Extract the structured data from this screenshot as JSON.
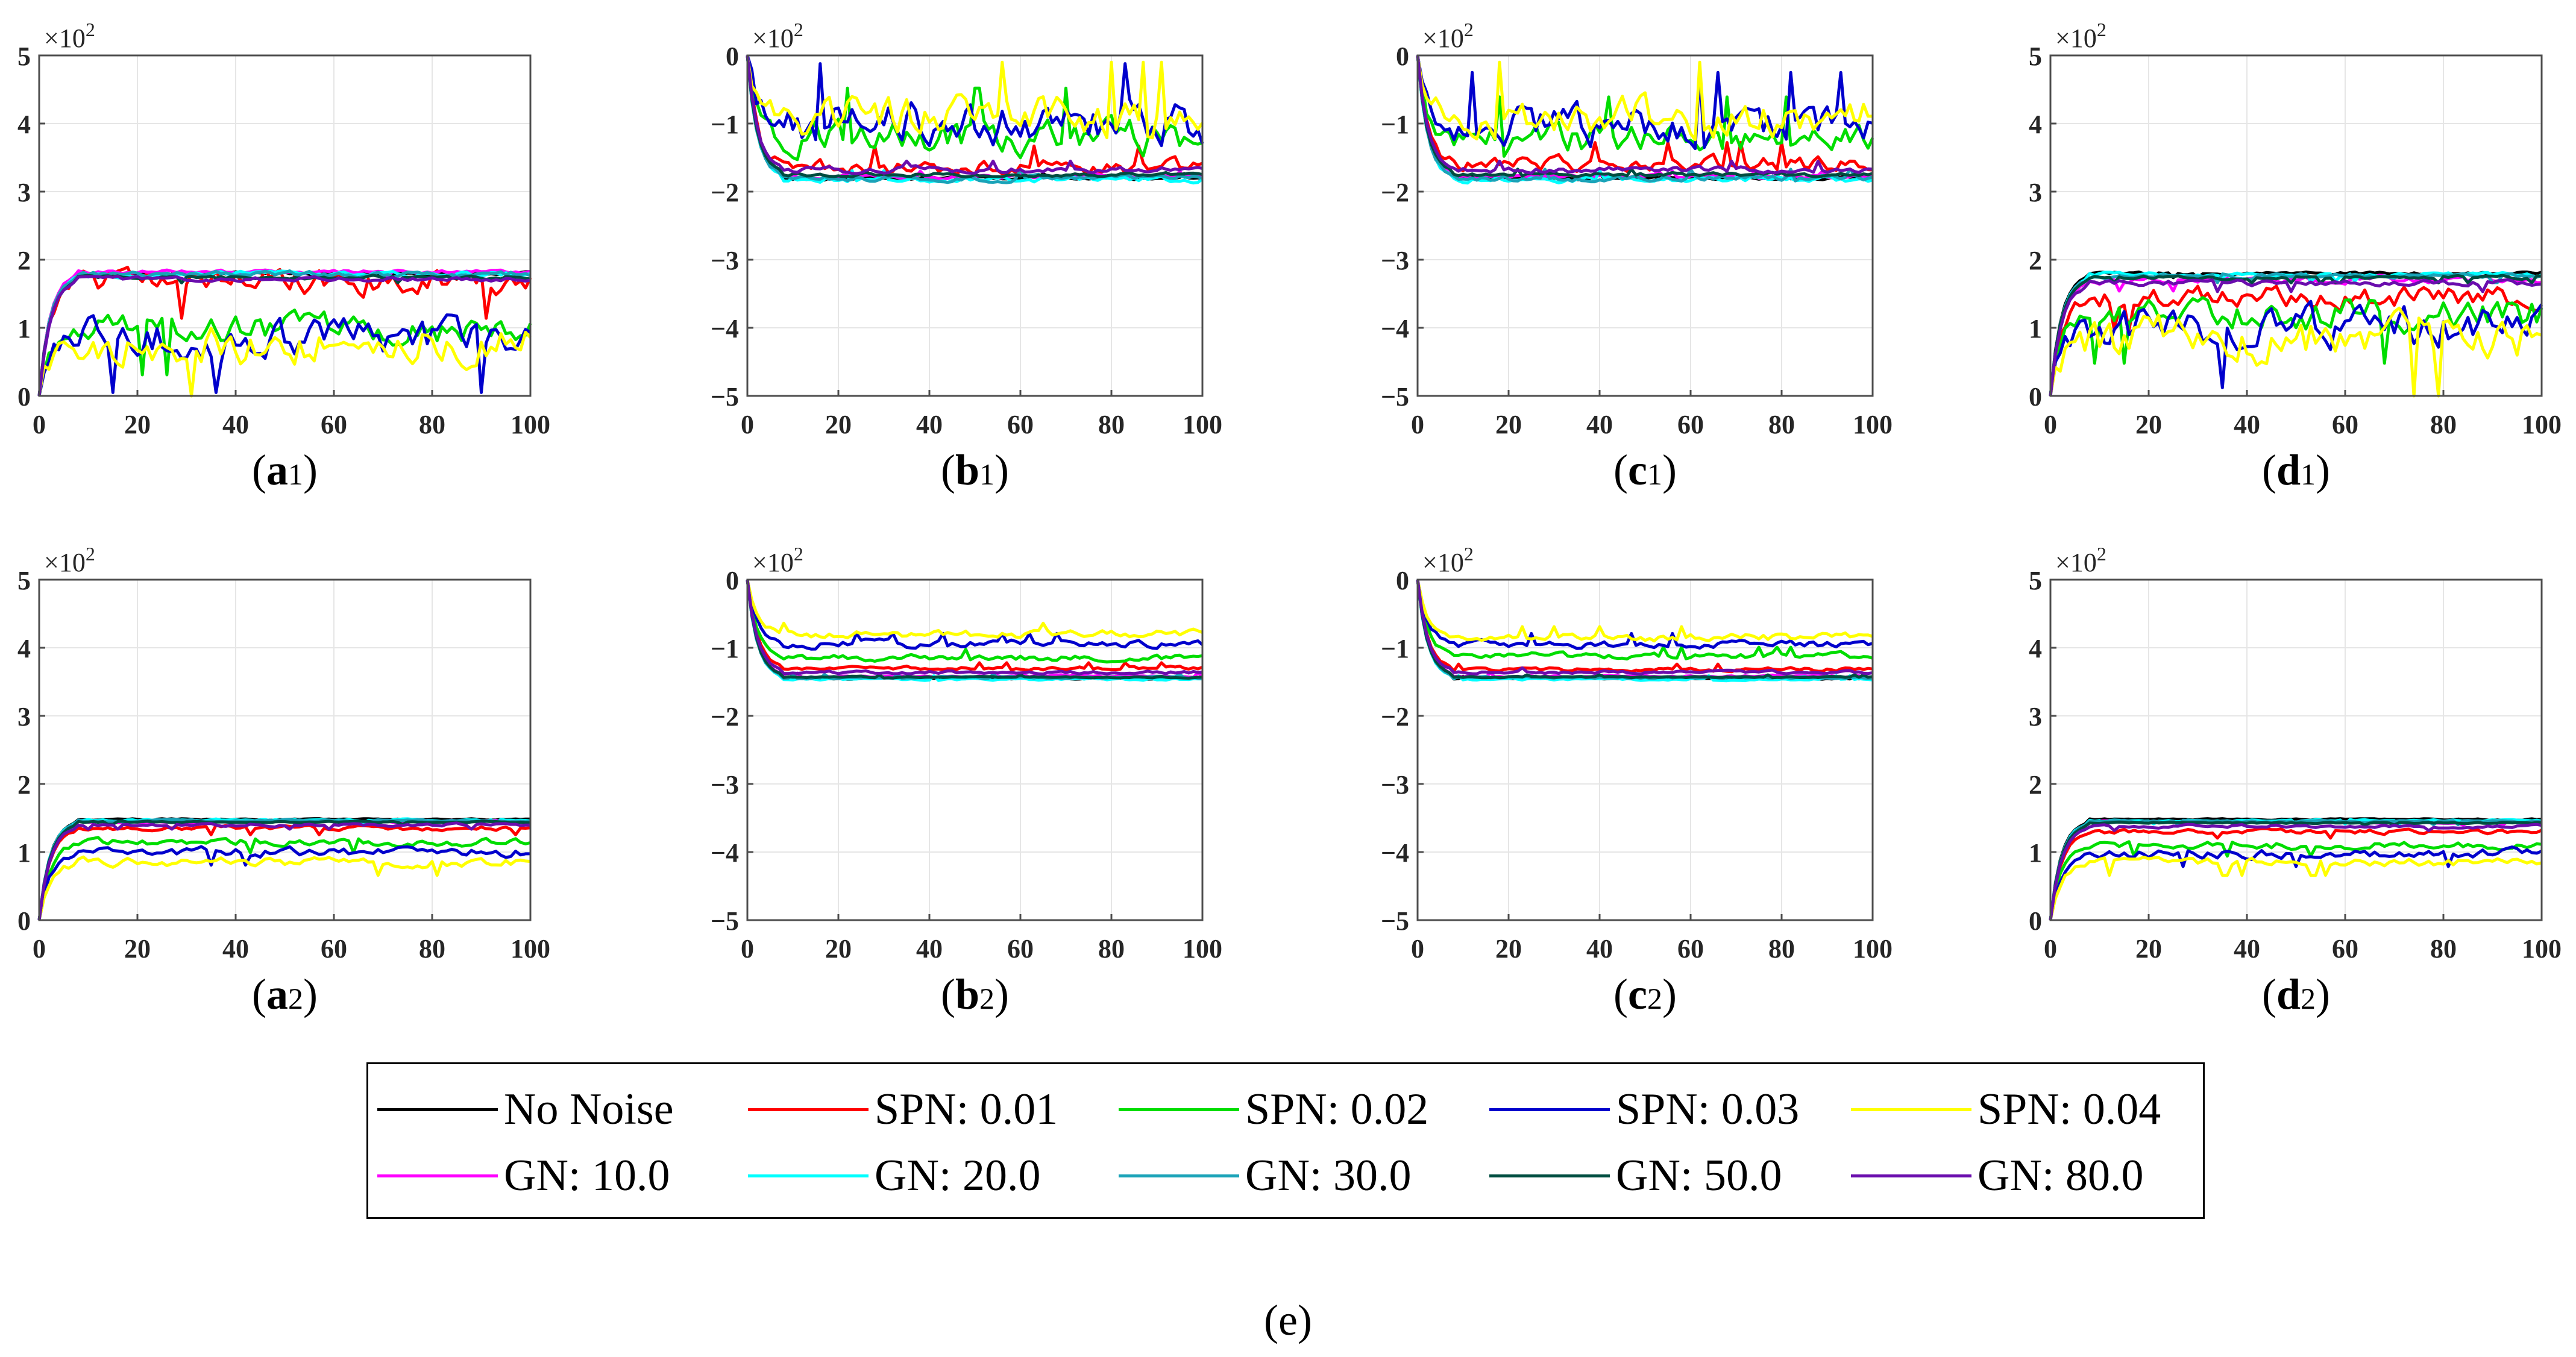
{
  "chart_data": [
    {
      "id": "a1",
      "type": "line",
      "label_letter": "a",
      "label_sub": "1",
      "xlim": [
        0,
        100
      ],
      "ylim": [
        0,
        5
      ],
      "xticks": [
        "0",
        "20",
        "40",
        "60",
        "80",
        "100"
      ],
      "yticks": [
        "0",
        "1",
        "2",
        "3",
        "4",
        "5"
      ],
      "exponent_label": "×10",
      "exponent_power": "2",
      "sign": 1,
      "converge": [
        1.8,
        1.7,
        0.95,
        0.85,
        0.8,
        1.82,
        1.78,
        1.79,
        1.74,
        1.72
      ],
      "noise_amp": [
        0.04,
        0.35,
        0.4,
        0.5,
        0.55,
        0.05,
        0.08,
        0.08,
        0.05,
        0.06
      ]
    },
    {
      "id": "b1",
      "type": "line",
      "label_letter": "b",
      "label_sub": "1",
      "xlim": [
        0,
        100
      ],
      "ylim": [
        -5,
        0
      ],
      "xticks": [
        "0",
        "20",
        "40",
        "60",
        "80",
        "100"
      ],
      "yticks": [
        "−5",
        "−4",
        "−3",
        "−2",
        "−1",
        "0"
      ],
      "exponent_label": "×10",
      "exponent_power": "2",
      "sign": -1,
      "converge": [
        1.8,
        1.65,
        1.2,
        1.0,
        0.9,
        1.78,
        1.82,
        1.8,
        1.75,
        1.68
      ],
      "noise_amp": [
        0.04,
        0.2,
        0.45,
        0.55,
        0.5,
        0.05,
        0.08,
        0.08,
        0.05,
        0.08
      ]
    },
    {
      "id": "c1",
      "type": "line",
      "label_letter": "c",
      "label_sub": "1",
      "xlim": [
        0,
        100
      ],
      "ylim": [
        -5,
        0
      ],
      "xticks": [
        "0",
        "20",
        "40",
        "60",
        "80",
        "100"
      ],
      "yticks": [
        "−5",
        "−4",
        "−3",
        "−2",
        "−1",
        "0"
      ],
      "exponent_label": "×10",
      "exponent_power": "2",
      "sign": -1,
      "converge": [
        1.8,
        1.6,
        1.25,
        1.05,
        0.9,
        1.78,
        1.82,
        1.8,
        1.75,
        1.68
      ],
      "noise_amp": [
        0.04,
        0.2,
        0.4,
        0.5,
        0.5,
        0.05,
        0.08,
        0.08,
        0.05,
        0.08
      ]
    },
    {
      "id": "d1",
      "type": "line",
      "label_letter": "d",
      "label_sub": "1",
      "xlim": [
        0,
        100
      ],
      "ylim": [
        0,
        5
      ],
      "xticks": [
        "0",
        "20",
        "40",
        "60",
        "80",
        "100"
      ],
      "yticks": [
        "0",
        "1",
        "2",
        "3",
        "4",
        "5"
      ],
      "exponent_label": "×10",
      "exponent_power": "2",
      "sign": 1,
      "converge": [
        1.8,
        1.45,
        1.2,
        1.0,
        0.85,
        1.7,
        1.78,
        1.76,
        1.74,
        1.66
      ],
      "noise_amp": [
        0.04,
        0.3,
        0.45,
        0.55,
        0.6,
        0.1,
        0.06,
        0.06,
        0.05,
        0.08
      ]
    },
    {
      "id": "a2",
      "type": "line",
      "label_letter": "a",
      "label_sub": "2",
      "xlim": [
        0,
        100
      ],
      "ylim": [
        0,
        5
      ],
      "xticks": [
        "0",
        "20",
        "40",
        "60",
        "80",
        "100"
      ],
      "yticks": [
        "0",
        "1",
        "2",
        "3",
        "4",
        "5"
      ],
      "exponent_label": "×10",
      "exponent_power": "2",
      "sign": 1,
      "converge": [
        1.48,
        1.35,
        1.15,
        1.0,
        0.85,
        1.45,
        1.47,
        1.46,
        1.44,
        1.4
      ],
      "noise_amp": [
        0.02,
        0.06,
        0.1,
        0.12,
        0.12,
        0.03,
        0.03,
        0.03,
        0.02,
        0.04
      ]
    },
    {
      "id": "b2",
      "type": "line",
      "label_letter": "b",
      "label_sub": "2",
      "xlim": [
        0,
        100
      ],
      "ylim": [
        -5,
        0
      ],
      "xticks": [
        "0",
        "20",
        "40",
        "60",
        "80",
        "100"
      ],
      "yticks": [
        "−5",
        "−4",
        "−3",
        "−2",
        "−1",
        "0"
      ],
      "exponent_label": "×10",
      "exponent_power": "2",
      "sign": -1,
      "converge": [
        1.45,
        1.3,
        1.15,
        0.95,
        0.8,
        1.42,
        1.46,
        1.44,
        1.43,
        1.36
      ],
      "noise_amp": [
        0.02,
        0.05,
        0.08,
        0.1,
        0.1,
        0.03,
        0.03,
        0.03,
        0.02,
        0.04
      ]
    },
    {
      "id": "c2",
      "type": "line",
      "label_letter": "c",
      "label_sub": "2",
      "xlim": [
        0,
        100
      ],
      "ylim": [
        -5,
        0
      ],
      "xticks": [
        "0",
        "20",
        "40",
        "60",
        "80",
        "100"
      ],
      "yticks": [
        "−5",
        "−4",
        "−3",
        "−2",
        "−1",
        "0"
      ],
      "exponent_label": "×10",
      "exponent_power": "2",
      "sign": -1,
      "converge": [
        1.45,
        1.32,
        1.12,
        0.95,
        0.85,
        1.42,
        1.46,
        1.44,
        1.43,
        1.36
      ],
      "noise_amp": [
        0.02,
        0.05,
        0.08,
        0.1,
        0.1,
        0.03,
        0.03,
        0.03,
        0.02,
        0.04
      ]
    },
    {
      "id": "d2",
      "type": "line",
      "label_letter": "d",
      "label_sub": "2",
      "xlim": [
        0,
        100
      ],
      "ylim": [
        0,
        5
      ],
      "xticks": [
        "0",
        "20",
        "40",
        "60",
        "80",
        "100"
      ],
      "yticks": [
        "0",
        "1",
        "2",
        "3",
        "4",
        "5"
      ],
      "exponent_label": "×10",
      "exponent_power": "2",
      "sign": 1,
      "converge": [
        1.48,
        1.3,
        1.1,
        0.98,
        0.85,
        1.44,
        1.46,
        1.45,
        1.43,
        1.38
      ],
      "noise_amp": [
        0.02,
        0.06,
        0.1,
        0.12,
        0.12,
        0.03,
        0.03,
        0.03,
        0.02,
        0.04
      ]
    }
  ],
  "legend": {
    "items": [
      {
        "label": "No Noise",
        "color": "#000000"
      },
      {
        "label": "SPN: 0.01",
        "color": "#ff0000"
      },
      {
        "label": "SPN: 0.02",
        "color": "#00dd00"
      },
      {
        "label": "SPN: 0.03",
        "color": "#0000cc"
      },
      {
        "label": "SPN: 0.04",
        "color": "#ffff00"
      },
      {
        "label": "GN: 10.0",
        "color": "#ff00ff"
      },
      {
        "label": "GN: 20.0",
        "color": "#00ffff"
      },
      {
        "label": "GN: 30.0",
        "color": "#1aa3b8"
      },
      {
        "label": "GN: 50.0",
        "color": "#004d40"
      },
      {
        "label": "GN: 80.0",
        "color": "#6a0dad"
      }
    ]
  },
  "caption": "(e)"
}
